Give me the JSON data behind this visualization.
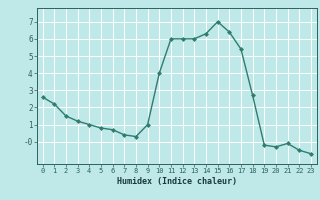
{
  "x": [
    0,
    1,
    2,
    3,
    4,
    5,
    6,
    7,
    8,
    9,
    10,
    11,
    12,
    13,
    14,
    15,
    16,
    17,
    18,
    19,
    20,
    21,
    22,
    23
  ],
  "y": [
    2.6,
    2.2,
    1.5,
    1.2,
    1.0,
    0.8,
    0.7,
    0.4,
    0.3,
    1.0,
    4.0,
    6.0,
    6.0,
    6.0,
    6.3,
    7.0,
    6.4,
    5.4,
    2.7,
    -0.2,
    -0.3,
    -0.1,
    -0.5,
    -0.7
  ],
  "line_color": "#2e7d6e",
  "marker": "D",
  "marker_size": 2.0,
  "bg_color": "#bfe8e8",
  "grid_color": "#ffffff",
  "xlabel": "Humidex (Indice chaleur)",
  "xlim": [
    -0.5,
    23.5
  ],
  "ylim": [
    -1.3,
    7.8
  ],
  "yticks": [
    0,
    1,
    2,
    3,
    4,
    5,
    6,
    7
  ],
  "ytick_labels": [
    "-0",
    "1",
    "2",
    "3",
    "4",
    "5",
    "6",
    "7"
  ],
  "xtick_labels": [
    "0",
    "1",
    "2",
    "3",
    "4",
    "5",
    "6",
    "7",
    "8",
    "9",
    "10",
    "11",
    "12",
    "13",
    "14",
    "15",
    "16",
    "17",
    "18",
    "19",
    "20",
    "21",
    "22",
    "23"
  ]
}
